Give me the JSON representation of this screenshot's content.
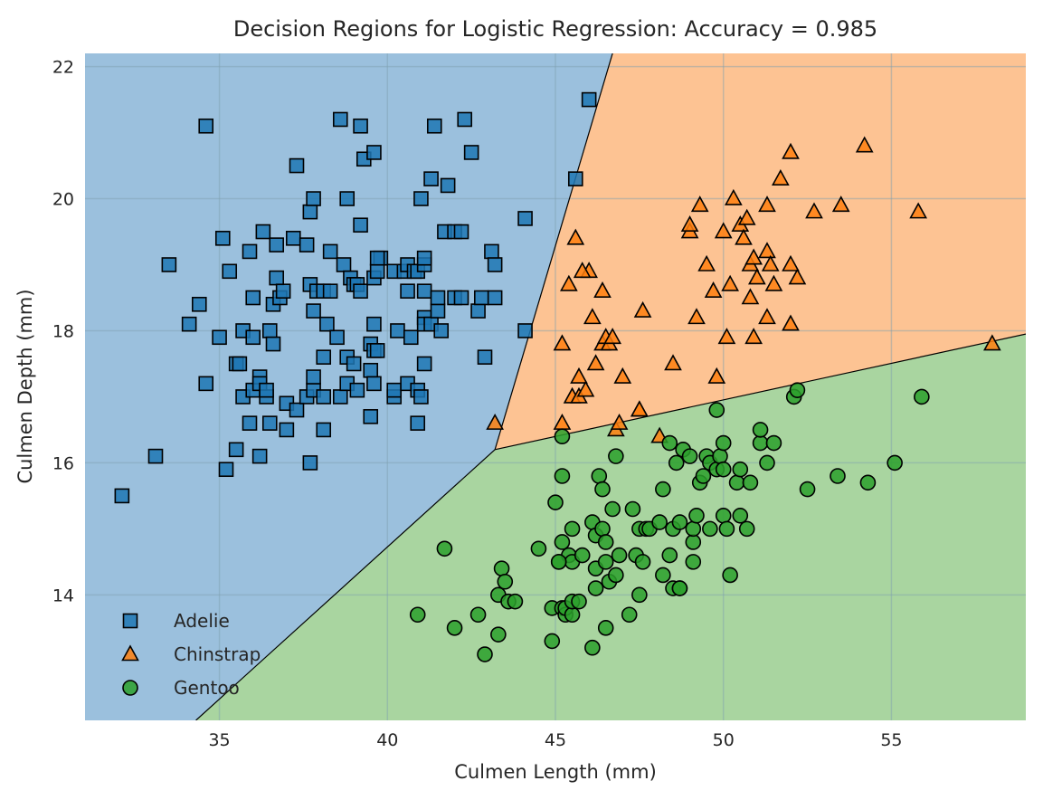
{
  "chart_data": {
    "type": "scatter",
    "title": "Decision Regions for Logistic Regression: Accuracy = 0.985",
    "xlabel": "Culmen Length (mm)",
    "ylabel": "Culmen Depth (mm)",
    "xlim": [
      31.0,
      59.0
    ],
    "ylim": [
      12.1,
      22.2
    ],
    "xticks": [
      35,
      40,
      45,
      50,
      55
    ],
    "yticks": [
      14,
      16,
      18,
      20,
      22
    ],
    "grid": true,
    "legend_position": "lower-left",
    "decision_boundaries": {
      "adelie_chinstrap": [
        [
          43.2,
          16.2
        ],
        [
          46.7,
          22.2
        ]
      ],
      "adelie_gentoo": [
        [
          34.3,
          12.1
        ],
        [
          43.2,
          16.2
        ]
      ],
      "chinstrap_gentoo": [
        [
          43.2,
          16.2
        ],
        [
          59.0,
          17.95
        ]
      ]
    },
    "region_colors": {
      "Adelie": "#9bc0dd",
      "Chinstrap": "#fdc393",
      "Gentoo": "#a9d5a0"
    },
    "series": [
      {
        "name": "Adelie",
        "marker": "square",
        "color": "#1f77b4",
        "points": [
          [
            32.1,
            15.5
          ],
          [
            33.1,
            16.1
          ],
          [
            33.5,
            19.0
          ],
          [
            34.1,
            18.1
          ],
          [
            34.4,
            18.4
          ],
          [
            34.6,
            21.1
          ],
          [
            34.6,
            17.2
          ],
          [
            35.0,
            17.9
          ],
          [
            35.1,
            19.4
          ],
          [
            35.2,
            15.9
          ],
          [
            35.3,
            18.9
          ],
          [
            35.5,
            17.5
          ],
          [
            35.5,
            16.2
          ],
          [
            35.6,
            17.5
          ],
          [
            35.7,
            18.0
          ],
          [
            35.7,
            17.0
          ],
          [
            35.9,
            19.2
          ],
          [
            35.9,
            16.6
          ],
          [
            36.0,
            17.9
          ],
          [
            36.0,
            18.5
          ],
          [
            36.0,
            17.1
          ],
          [
            36.2,
            17.3
          ],
          [
            36.2,
            16.1
          ],
          [
            36.2,
            17.2
          ],
          [
            36.3,
            19.5
          ],
          [
            36.4,
            17.0
          ],
          [
            36.4,
            17.1
          ],
          [
            36.5,
            18.0
          ],
          [
            36.5,
            16.6
          ],
          [
            36.6,
            17.8
          ],
          [
            36.6,
            18.4
          ],
          [
            36.7,
            19.3
          ],
          [
            36.7,
            18.8
          ],
          [
            36.8,
            18.5
          ],
          [
            36.9,
            18.6
          ],
          [
            37.0,
            16.9
          ],
          [
            37.0,
            16.5
          ],
          [
            37.2,
            19.4
          ],
          [
            37.3,
            20.5
          ],
          [
            37.3,
            16.8
          ],
          [
            37.6,
            19.3
          ],
          [
            37.6,
            17.0
          ],
          [
            37.7,
            18.7
          ],
          [
            37.7,
            16.0
          ],
          [
            37.7,
            19.8
          ],
          [
            37.8,
            17.1
          ],
          [
            37.8,
            17.3
          ],
          [
            37.8,
            18.3
          ],
          [
            37.8,
            20.0
          ],
          [
            37.9,
            18.6
          ],
          [
            38.1,
            17.0
          ],
          [
            38.1,
            18.6
          ],
          [
            38.1,
            16.5
          ],
          [
            38.1,
            17.6
          ],
          [
            38.2,
            18.1
          ],
          [
            38.3,
            19.2
          ],
          [
            38.5,
            17.9
          ],
          [
            38.6,
            17.0
          ],
          [
            38.6,
            21.2
          ],
          [
            38.7,
            19.0
          ],
          [
            38.8,
            20.0
          ],
          [
            38.8,
            17.2
          ],
          [
            38.8,
            17.6
          ],
          [
            38.9,
            18.8
          ],
          [
            39.0,
            17.5
          ],
          [
            39.0,
            18.7
          ],
          [
            39.1,
            18.7
          ],
          [
            39.1,
            17.1
          ],
          [
            39.2,
            19.6
          ],
          [
            39.2,
            18.6
          ],
          [
            39.2,
            21.1
          ],
          [
            39.3,
            20.6
          ],
          [
            39.5,
            16.7
          ],
          [
            39.5,
            17.4
          ],
          [
            39.5,
            17.8
          ],
          [
            39.6,
            17.7
          ],
          [
            39.6,
            18.8
          ],
          [
            39.6,
            17.2
          ],
          [
            39.6,
            20.7
          ],
          [
            39.6,
            18.1
          ],
          [
            39.7,
            17.7
          ],
          [
            39.7,
            18.9
          ],
          [
            39.8,
            19.1
          ],
          [
            40.2,
            18.9
          ],
          [
            40.2,
            17.0
          ],
          [
            40.2,
            17.1
          ],
          [
            40.3,
            18.0
          ],
          [
            40.5,
            18.9
          ],
          [
            40.6,
            17.2
          ],
          [
            40.6,
            18.6
          ],
          [
            40.6,
            19.0
          ],
          [
            40.7,
            17.9
          ],
          [
            40.8,
            18.9
          ],
          [
            40.9,
            16.6
          ],
          [
            40.9,
            18.9
          ],
          [
            41.1,
            18.2
          ],
          [
            41.1,
            19.0
          ],
          [
            41.1,
            18.6
          ],
          [
            41.1,
            19.1
          ],
          [
            41.1,
            18.1
          ],
          [
            41.0,
            20.0
          ],
          [
            41.1,
            17.5
          ],
          [
            41.3,
            20.3
          ],
          [
            41.3,
            18.1
          ],
          [
            41.5,
            18.3
          ],
          [
            41.5,
            18.5
          ],
          [
            41.6,
            18.0
          ],
          [
            41.7,
            19.5
          ],
          [
            41.8,
            20.2
          ],
          [
            42.0,
            18.5
          ],
          [
            42.0,
            19.5
          ],
          [
            42.2,
            19.5
          ],
          [
            42.2,
            18.5
          ],
          [
            42.3,
            21.2
          ],
          [
            42.5,
            20.7
          ],
          [
            42.7,
            18.3
          ],
          [
            42.8,
            18.5
          ],
          [
            42.9,
            17.6
          ],
          [
            43.1,
            19.2
          ],
          [
            43.2,
            18.5
          ],
          [
            43.2,
            19.0
          ],
          [
            44.1,
            19.7
          ],
          [
            44.1,
            18.0
          ],
          [
            45.6,
            20.3
          ],
          [
            46.0,
            21.5
          ],
          [
            41.4,
            21.1
          ],
          [
            40.9,
            17.1
          ],
          [
            41.0,
            17.0
          ],
          [
            39.7,
            19.1
          ],
          [
            38.3,
            18.6
          ]
        ]
      },
      {
        "name": "Chinstrap",
        "marker": "triangle",
        "color": "#ff7f0e",
        "points": [
          [
            43.2,
            16.6
          ],
          [
            45.2,
            16.6
          ],
          [
            45.2,
            17.8
          ],
          [
            45.4,
            18.7
          ],
          [
            45.5,
            17.0
          ],
          [
            45.6,
            19.4
          ],
          [
            45.7,
            17.3
          ],
          [
            45.7,
            17.0
          ],
          [
            45.9,
            17.1
          ],
          [
            46.1,
            18.2
          ],
          [
            46.2,
            17.5
          ],
          [
            46.4,
            17.8
          ],
          [
            46.4,
            18.6
          ],
          [
            46.5,
            17.9
          ],
          [
            46.6,
            17.8
          ],
          [
            46.7,
            17.9
          ],
          [
            46.8,
            16.5
          ],
          [
            46.9,
            16.6
          ],
          [
            47.0,
            17.3
          ],
          [
            47.5,
            16.8
          ],
          [
            47.6,
            18.3
          ],
          [
            48.1,
            16.4
          ],
          [
            48.5,
            17.5
          ],
          [
            49.0,
            19.5
          ],
          [
            49.0,
            19.6
          ],
          [
            49.2,
            18.2
          ],
          [
            49.3,
            19.9
          ],
          [
            49.5,
            19.0
          ],
          [
            49.7,
            18.6
          ],
          [
            49.8,
            17.3
          ],
          [
            50.0,
            19.5
          ],
          [
            50.1,
            17.9
          ],
          [
            50.2,
            18.7
          ],
          [
            50.3,
            20.0
          ],
          [
            50.5,
            19.6
          ],
          [
            50.6,
            19.4
          ],
          [
            50.7,
            19.7
          ],
          [
            50.8,
            18.5
          ],
          [
            50.8,
            19.0
          ],
          [
            50.9,
            17.9
          ],
          [
            50.9,
            19.1
          ],
          [
            51.0,
            18.8
          ],
          [
            51.3,
            19.2
          ],
          [
            51.3,
            18.2
          ],
          [
            51.3,
            19.9
          ],
          [
            51.4,
            19.0
          ],
          [
            51.5,
            18.7
          ],
          [
            51.7,
            20.3
          ],
          [
            52.0,
            18.1
          ],
          [
            52.0,
            19.0
          ],
          [
            52.0,
            20.7
          ],
          [
            52.2,
            18.8
          ],
          [
            52.7,
            19.8
          ],
          [
            53.5,
            19.9
          ],
          [
            54.2,
            20.8
          ],
          [
            55.8,
            19.8
          ],
          [
            58.0,
            17.8
          ],
          [
            46.0,
            18.9
          ],
          [
            45.8,
            18.9
          ],
          [
            47.5,
            16.8
          ]
        ]
      },
      {
        "name": "Gentoo",
        "marker": "circle",
        "color": "#2ca02c",
        "points": [
          [
            40.9,
            13.7
          ],
          [
            41.7,
            14.7
          ],
          [
            42.0,
            13.5
          ],
          [
            42.7,
            13.7
          ],
          [
            42.9,
            13.1
          ],
          [
            43.3,
            14.0
          ],
          [
            43.3,
            13.4
          ],
          [
            43.4,
            14.4
          ],
          [
            43.5,
            14.2
          ],
          [
            43.6,
            13.9
          ],
          [
            43.8,
            13.9
          ],
          [
            44.5,
            14.7
          ],
          [
            44.9,
            13.3
          ],
          [
            44.9,
            13.8
          ],
          [
            45.0,
            15.4
          ],
          [
            45.1,
            14.5
          ],
          [
            45.2,
            13.8
          ],
          [
            45.2,
            14.8
          ],
          [
            45.2,
            15.8
          ],
          [
            45.2,
            16.4
          ],
          [
            45.3,
            13.7
          ],
          [
            45.3,
            13.8
          ],
          [
            45.4,
            14.6
          ],
          [
            45.5,
            13.7
          ],
          [
            45.5,
            13.9
          ],
          [
            45.5,
            14.5
          ],
          [
            45.5,
            15.0
          ],
          [
            45.7,
            13.9
          ],
          [
            45.8,
            14.6
          ],
          [
            46.1,
            13.2
          ],
          [
            46.1,
            15.1
          ],
          [
            46.2,
            14.1
          ],
          [
            46.2,
            14.4
          ],
          [
            46.2,
            14.9
          ],
          [
            46.3,
            15.8
          ],
          [
            46.4,
            15.0
          ],
          [
            46.4,
            15.6
          ],
          [
            46.5,
            13.5
          ],
          [
            46.5,
            14.5
          ],
          [
            46.5,
            14.8
          ],
          [
            46.6,
            14.2
          ],
          [
            46.7,
            15.3
          ],
          [
            46.8,
            14.3
          ],
          [
            46.8,
            16.1
          ],
          [
            46.9,
            14.6
          ],
          [
            47.2,
            13.7
          ],
          [
            47.3,
            15.3
          ],
          [
            47.4,
            14.6
          ],
          [
            47.5,
            14.0
          ],
          [
            47.5,
            15.0
          ],
          [
            47.6,
            14.5
          ],
          [
            47.7,
            15.0
          ],
          [
            47.8,
            15.0
          ],
          [
            48.1,
            15.1
          ],
          [
            48.2,
            14.3
          ],
          [
            48.2,
            15.6
          ],
          [
            48.4,
            14.6
          ],
          [
            48.4,
            16.3
          ],
          [
            48.5,
            14.1
          ],
          [
            48.5,
            15.0
          ],
          [
            48.6,
            16.0
          ],
          [
            48.7,
            14.1
          ],
          [
            48.7,
            15.1
          ],
          [
            48.8,
            16.2
          ],
          [
            49.0,
            16.1
          ],
          [
            49.1,
            14.5
          ],
          [
            49.1,
            14.8
          ],
          [
            49.1,
            15.0
          ],
          [
            49.2,
            15.2
          ],
          [
            49.3,
            15.7
          ],
          [
            49.4,
            15.8
          ],
          [
            49.5,
            16.1
          ],
          [
            49.6,
            16.0
          ],
          [
            49.8,
            15.9
          ],
          [
            49.8,
            16.8
          ],
          [
            49.9,
            16.1
          ],
          [
            50.0,
            15.2
          ],
          [
            50.0,
            15.9
          ],
          [
            50.0,
            16.3
          ],
          [
            50.1,
            15.0
          ],
          [
            50.2,
            14.3
          ],
          [
            50.4,
            15.7
          ],
          [
            50.5,
            15.2
          ],
          [
            50.5,
            15.9
          ],
          [
            50.7,
            15.0
          ],
          [
            50.8,
            15.7
          ],
          [
            51.1,
            16.3
          ],
          [
            51.1,
            16.5
          ],
          [
            51.3,
            16.0
          ],
          [
            51.5,
            16.3
          ],
          [
            52.1,
            17.0
          ],
          [
            52.2,
            17.1
          ],
          [
            52.5,
            15.6
          ],
          [
            53.4,
            15.8
          ],
          [
            54.3,
            15.7
          ],
          [
            55.1,
            16.0
          ],
          [
            55.9,
            17.0
          ],
          [
            49.6,
            15.0
          ],
          [
            48.7,
            14.1
          ],
          [
            45.1,
            14.5
          ]
        ]
      }
    ]
  }
}
